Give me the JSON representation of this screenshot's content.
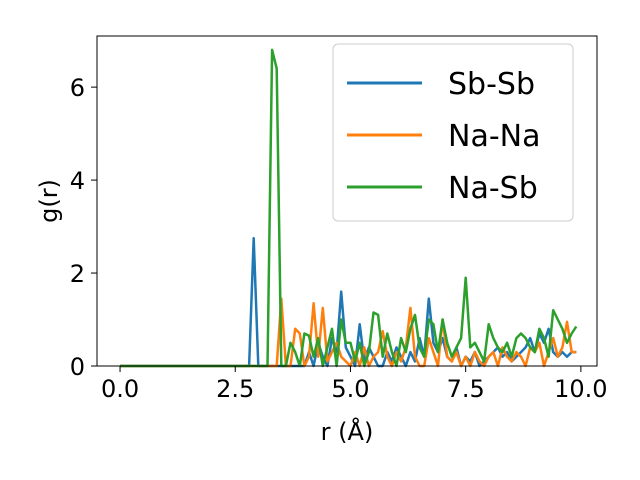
{
  "chart_data": {
    "type": "line",
    "xlabel": "r (Å)",
    "ylabel": "g(r)",
    "xlim": [
      -0.5,
      10.35
    ],
    "ylim": [
      0,
      7.1
    ],
    "xticks": [
      0.0,
      2.5,
      5.0,
      7.5,
      10.0
    ],
    "xtick_labels": [
      "0.0",
      "2.5",
      "5.0",
      "7.5",
      "10.0"
    ],
    "yticks": [
      0,
      2,
      4,
      6
    ],
    "ytick_labels": [
      "0",
      "2",
      "4",
      "6"
    ],
    "grid": false,
    "legend_position": "top-right",
    "series": [
      {
        "name": "Sb-Sb",
        "color": "#1f77b4",
        "x": [
          0.0,
          2.8,
          2.9,
          3.0,
          3.1,
          4.0,
          4.1,
          4.2,
          4.3,
          4.4,
          4.5,
          4.6,
          4.7,
          4.8,
          4.9,
          5.0,
          5.1,
          5.2,
          5.3,
          5.4,
          5.5,
          5.6,
          5.7,
          5.8,
          5.9,
          6.0,
          6.1,
          6.2,
          6.3,
          6.4,
          6.5,
          6.6,
          6.7,
          6.8,
          6.9,
          7.0,
          7.1,
          7.2,
          7.3,
          7.4,
          7.5,
          7.6,
          7.7,
          7.8,
          7.9,
          8.0,
          8.1,
          8.2,
          8.3,
          8.4,
          8.5,
          8.6,
          8.7,
          8.8,
          8.9,
          9.0,
          9.1,
          9.2,
          9.3,
          9.4,
          9.5,
          9.6,
          9.7,
          9.8,
          9.9
        ],
        "y": [
          0.0,
          0.0,
          2.75,
          0.0,
          0.0,
          0.0,
          0.3,
          0.0,
          0.5,
          0.2,
          0.0,
          0.6,
          0.3,
          1.6,
          0.4,
          0.2,
          0.0,
          0.9,
          0.1,
          0.4,
          0.2,
          0.0,
          0.0,
          0.3,
          0.1,
          0.4,
          0.2,
          0.0,
          0.3,
          0.1,
          0.6,
          0.2,
          1.45,
          0.5,
          0.3,
          0.6,
          0.2,
          0.1,
          0.4,
          0.0,
          0.2,
          0.1,
          0.3,
          0.0,
          0.1,
          0.2,
          0.3,
          0.4,
          0.2,
          0.3,
          0.1,
          0.2,
          0.3,
          0.4,
          0.6,
          0.3,
          0.7,
          0.5,
          0.8,
          0.3,
          0.2,
          0.3,
          0.2,
          0.3,
          0.3
        ]
      },
      {
        "name": "Na-Na",
        "color": "#ff7f0e",
        "x": [
          0.0,
          3.3,
          3.4,
          3.5,
          3.6,
          3.7,
          3.8,
          3.9,
          4.0,
          4.1,
          4.2,
          4.3,
          4.4,
          4.5,
          4.6,
          4.7,
          4.8,
          4.9,
          5.0,
          5.1,
          5.2,
          5.3,
          5.4,
          5.5,
          5.6,
          5.7,
          5.8,
          5.9,
          6.0,
          6.1,
          6.2,
          6.3,
          6.4,
          6.5,
          6.6,
          6.7,
          6.8,
          6.9,
          7.0,
          7.1,
          7.2,
          7.3,
          7.4,
          7.5,
          7.6,
          7.7,
          7.8,
          7.9,
          8.0,
          8.1,
          8.2,
          8.3,
          8.4,
          8.5,
          8.6,
          8.7,
          8.8,
          8.9,
          9.0,
          9.1,
          9.2,
          9.3,
          9.4,
          9.5,
          9.6,
          9.7,
          9.8,
          9.9
        ],
        "y": [
          0.0,
          0.0,
          0.0,
          1.45,
          0.0,
          0.0,
          0.8,
          0.7,
          0.0,
          0.2,
          1.35,
          0.2,
          1.25,
          0.1,
          0.3,
          0.5,
          0.2,
          0.1,
          0.0,
          0.3,
          0.0,
          0.4,
          0.0,
          0.2,
          0.3,
          0.75,
          0.2,
          0.0,
          0.3,
          0.1,
          0.4,
          1.25,
          0.2,
          0.0,
          0.0,
          0.6,
          0.3,
          0.0,
          1.0,
          0.2,
          0.1,
          0.3,
          0.0,
          0.2,
          0.0,
          0.3,
          0.1,
          0.0,
          0.2,
          0.3,
          0.0,
          0.4,
          0.2,
          0.1,
          0.3,
          0.2,
          0.0,
          0.4,
          0.3,
          0.5,
          0.0,
          0.3,
          0.6,
          0.2,
          0.4,
          0.95,
          0.3,
          0.3
        ]
      },
      {
        "name": "Na-Sb",
        "color": "#2ca02c",
        "x": [
          0.0,
          3.1,
          3.2,
          3.3,
          3.4,
          3.5,
          3.6,
          3.7,
          3.8,
          3.9,
          4.0,
          4.1,
          4.2,
          4.3,
          4.4,
          4.5,
          4.6,
          4.7,
          4.8,
          4.9,
          5.0,
          5.1,
          5.2,
          5.3,
          5.4,
          5.5,
          5.6,
          5.7,
          5.8,
          5.9,
          6.0,
          6.1,
          6.2,
          6.3,
          6.4,
          6.5,
          6.6,
          6.7,
          6.8,
          6.9,
          7.0,
          7.1,
          7.2,
          7.3,
          7.4,
          7.5,
          7.6,
          7.7,
          7.8,
          7.9,
          8.0,
          8.1,
          8.2,
          8.3,
          8.4,
          8.5,
          8.6,
          8.7,
          8.8,
          8.9,
          9.0,
          9.1,
          9.2,
          9.3,
          9.4,
          9.5,
          9.6,
          9.7,
          9.8,
          9.9
        ],
        "y": [
          0.0,
          0.0,
          0.0,
          6.8,
          6.4,
          0.0,
          0.0,
          0.5,
          0.3,
          0.0,
          0.7,
          0.65,
          0.2,
          0.6,
          0.0,
          0.4,
          0.8,
          0.0,
          1.0,
          0.5,
          0.5,
          0.1,
          0.5,
          0.0,
          0.3,
          1.15,
          1.1,
          0.2,
          0.7,
          0.3,
          0.0,
          0.6,
          0.3,
          0.8,
          1.1,
          0.4,
          0.2,
          1.0,
          0.9,
          0.3,
          1.0,
          0.5,
          0.2,
          0.4,
          0.6,
          1.9,
          0.4,
          0.5,
          0.3,
          0.1,
          0.9,
          0.6,
          0.4,
          0.3,
          0.5,
          0.2,
          0.6,
          0.7,
          0.6,
          0.4,
          0.3,
          0.8,
          0.6,
          0.2,
          1.2,
          1.0,
          0.8,
          0.5,
          0.7,
          0.85
        ]
      }
    ]
  }
}
